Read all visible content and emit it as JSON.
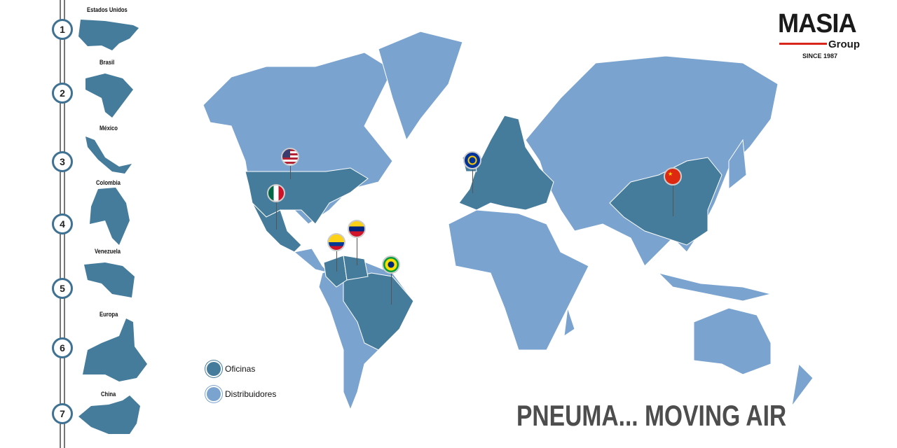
{
  "logo": {
    "name": "MASIA",
    "sub": "Group",
    "since": "SINCE 1987"
  },
  "sidebar": {
    "items": [
      {
        "num": "1",
        "label": "Estados Unidos"
      },
      {
        "num": "2",
        "label": "Brasil"
      },
      {
        "num": "3",
        "label": "México"
      },
      {
        "num": "4",
        "label": "Colombia"
      },
      {
        "num": "5",
        "label": "Venezuela"
      },
      {
        "num": "6",
        "label": "Europa"
      },
      {
        "num": "7",
        "label": "China"
      }
    ]
  },
  "legend": {
    "offices": "Oficinas",
    "distributors": "Distribuidores"
  },
  "tagline": "PNEUMA... MOVING AIR",
  "colors": {
    "offices": "#457c9c",
    "distributors": "#7aa3cf",
    "accent": "#d9261c"
  },
  "pins": [
    "usa-flag",
    "mexico-flag",
    "colombia-flag",
    "venezuela-flag",
    "brazil-flag",
    "eu-flag",
    "china-flag"
  ]
}
